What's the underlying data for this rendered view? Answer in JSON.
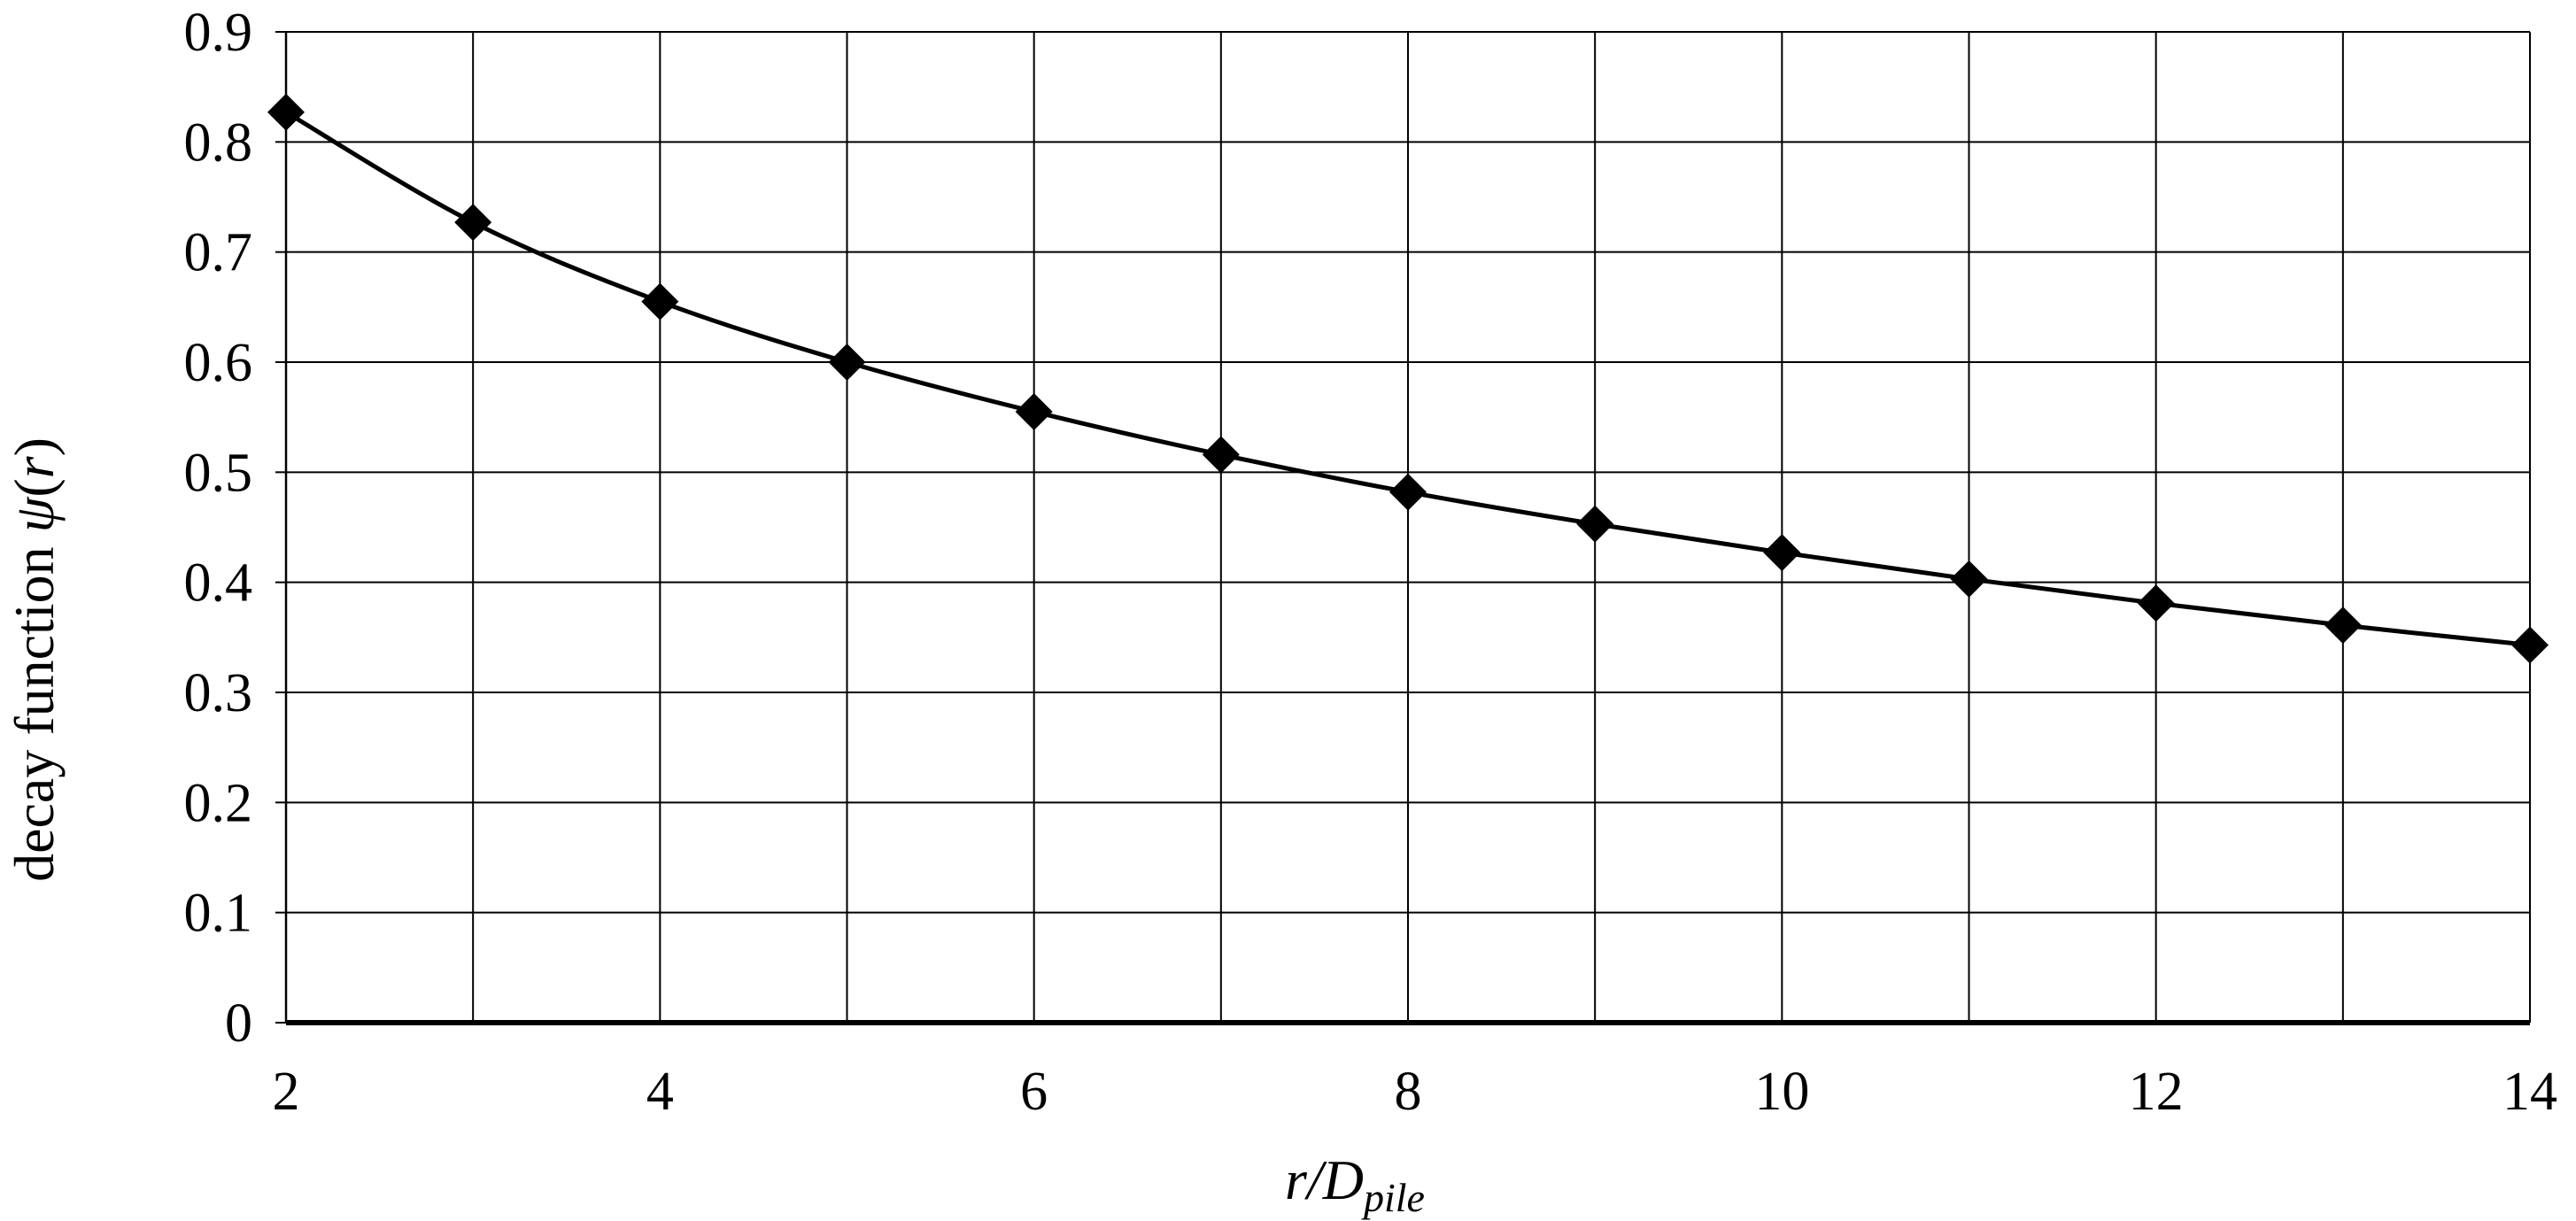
{
  "chart_data": {
    "type": "line",
    "title": "",
    "xlabel": {
      "prefix": "r/D",
      "subscript": "pile"
    },
    "ylabel": {
      "prefix": "decay function ",
      "symbol": "ψ",
      "suffix_open": "(",
      "suffix_var": "r",
      "suffix_close": ")"
    },
    "xlim": [
      2,
      14
    ],
    "ylim": [
      0,
      0.9
    ],
    "x_ticks": [
      "2",
      "4",
      "6",
      "8",
      "10",
      "12",
      "14"
    ],
    "x_tick_values": [
      2,
      4,
      6,
      8,
      10,
      12,
      14
    ],
    "y_ticks": [
      "0",
      "0.1",
      "0.2",
      "0.3",
      "0.4",
      "0.5",
      "0.6",
      "0.7",
      "0.8",
      "0.9"
    ],
    "y_tick_values": [
      0,
      0.1,
      0.2,
      0.3,
      0.4,
      0.5,
      0.6,
      0.7,
      0.8,
      0.9
    ],
    "vertical_grid_values": [
      2,
      3,
      4,
      5,
      6,
      7,
      8,
      9,
      10,
      11,
      12,
      13,
      14
    ],
    "grid": true,
    "marker": "diamond",
    "series": [
      {
        "x": [
          2,
          3,
          4,
          5,
          6,
          7,
          8,
          9,
          10,
          11,
          12,
          13,
          14
        ],
        "y": [
          0.827,
          0.727,
          0.655,
          0.6,
          0.555,
          0.516,
          0.482,
          0.453,
          0.427,
          0.403,
          0.381,
          0.361,
          0.343
        ]
      }
    ],
    "colors": {
      "line": "#000000",
      "marker": "#000000",
      "grid": "#000000",
      "background": "#ffffff"
    }
  }
}
